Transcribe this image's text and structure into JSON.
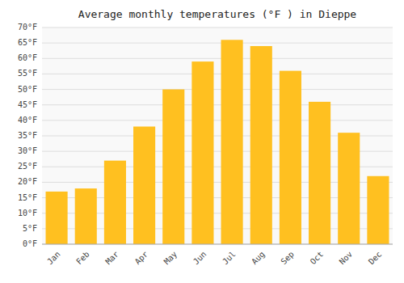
{
  "chart_data": {
    "type": "bar",
    "title": "Average monthly temperatures (°F ) in Dieppe",
    "categories": [
      "Jan",
      "Feb",
      "Mar",
      "Apr",
      "May",
      "Jun",
      "Jul",
      "Aug",
      "Sep",
      "Oct",
      "Nov",
      "Dec"
    ],
    "values": [
      17,
      18,
      27,
      38,
      50,
      59,
      66,
      64,
      56,
      46,
      36,
      22
    ],
    "color": "#FFC020",
    "ylim": [
      0,
      70
    ],
    "yticks": [
      {
        "value": 0,
        "label": "0°F"
      },
      {
        "value": 5,
        "label": "5°F"
      },
      {
        "value": 10,
        "label": "10°F"
      },
      {
        "value": 15,
        "label": "15°F"
      },
      {
        "value": 20,
        "label": "20°F"
      },
      {
        "value": 25,
        "label": "25°F"
      },
      {
        "value": 30,
        "label": "30°F"
      },
      {
        "value": 35,
        "label": "35°F"
      },
      {
        "value": 40,
        "label": "40°F"
      },
      {
        "value": 45,
        "label": "45°F"
      },
      {
        "value": 50,
        "label": "50°F"
      },
      {
        "value": 55,
        "label": "55°F"
      },
      {
        "value": 60,
        "label": "60°F"
      },
      {
        "value": 65,
        "label": "65°F"
      },
      {
        "value": 70,
        "label": "70°F"
      }
    ],
    "grid": true
  }
}
